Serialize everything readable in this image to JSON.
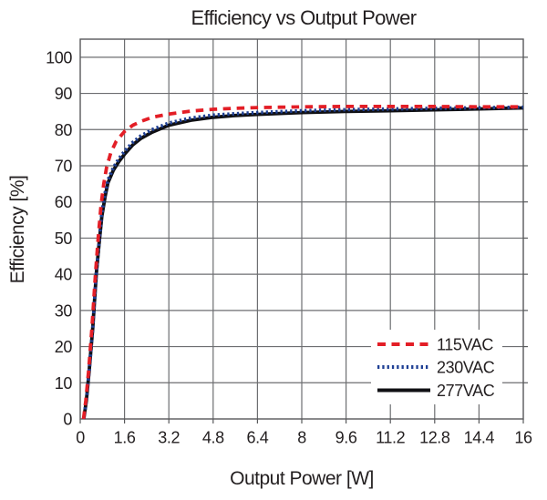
{
  "chart_data": {
    "type": "line",
    "title": "Efficiency vs Output Power",
    "xlabel": "Output Power [W]",
    "ylabel": "Efficiency [%]",
    "xlim": [
      0,
      16
    ],
    "ylim": [
      0,
      105
    ],
    "grid": true,
    "legend_position": "lower right",
    "x_ticks": [
      0,
      1.6,
      3.2,
      4.8,
      6.4,
      8,
      9.6,
      11.2,
      12.8,
      14.4,
      16
    ],
    "x_tick_labels": [
      "0",
      "1.6",
      "3.2",
      "4.8",
      "6.4",
      "8",
      "9.6",
      "11.2",
      "12.8",
      "14.4",
      "16"
    ],
    "y_ticks": [
      0,
      10,
      20,
      30,
      40,
      50,
      60,
      70,
      80,
      90,
      100
    ],
    "y_tick_labels": [
      "0",
      "10",
      "20",
      "30",
      "40",
      "50",
      "60",
      "70",
      "80",
      "90",
      "100"
    ],
    "colors": {
      "grid": "#6d6e71",
      "frame": "#58595b",
      "text": "#231f20"
    },
    "series": [
      {
        "name": "115VAC",
        "style": "dashed",
        "color": "#e31e26",
        "points": [
          [
            0.12,
            0
          ],
          [
            0.2,
            5
          ],
          [
            0.3,
            13
          ],
          [
            0.42,
            25
          ],
          [
            0.55,
            40
          ],
          [
            0.65,
            50
          ],
          [
            0.75,
            59
          ],
          [
            0.85,
            65
          ],
          [
            0.95,
            69.5
          ],
          [
            1.1,
            73.5
          ],
          [
            1.3,
            76.8
          ],
          [
            1.6,
            79.5
          ],
          [
            1.9,
            81.2
          ],
          [
            2.2,
            82.3
          ],
          [
            2.6,
            83.4
          ],
          [
            3.2,
            84.3
          ],
          [
            4.0,
            85.1
          ],
          [
            4.8,
            85.6
          ],
          [
            5.6,
            85.9
          ],
          [
            6.4,
            86.1
          ],
          [
            7.2,
            86.2
          ],
          [
            8.0,
            86.3
          ],
          [
            9.6,
            86.4
          ],
          [
            11.2,
            86.4
          ],
          [
            12.8,
            86.4
          ],
          [
            14.4,
            86.3
          ],
          [
            16,
            86.3
          ]
        ]
      },
      {
        "name": "230VAC",
        "style": "dotted",
        "color": "#1e3f94",
        "points": [
          [
            0.13,
            0
          ],
          [
            0.22,
            5
          ],
          [
            0.32,
            13
          ],
          [
            0.45,
            25
          ],
          [
            0.58,
            40
          ],
          [
            0.68,
            49
          ],
          [
            0.78,
            57
          ],
          [
            0.9,
            62.5
          ],
          [
            1.0,
            66
          ],
          [
            1.2,
            69.5
          ],
          [
            1.4,
            72
          ],
          [
            1.6,
            74
          ],
          [
            1.9,
            76.5
          ],
          [
            2.2,
            78.3
          ],
          [
            2.6,
            80
          ],
          [
            3.2,
            81.8
          ],
          [
            4.0,
            83.2
          ],
          [
            4.8,
            84.0
          ],
          [
            5.6,
            84.4
          ],
          [
            6.4,
            84.7
          ],
          [
            8.0,
            85.2
          ],
          [
            9.6,
            85.5
          ],
          [
            11.2,
            85.7
          ],
          [
            12.8,
            85.9
          ],
          [
            14.4,
            86.05
          ],
          [
            16,
            86.2
          ]
        ]
      },
      {
        "name": "277VAC",
        "style": "solid",
        "color": "#101014",
        "points": [
          [
            0.13,
            0
          ],
          [
            0.22,
            5
          ],
          [
            0.32,
            13
          ],
          [
            0.45,
            25
          ],
          [
            0.58,
            40
          ],
          [
            0.68,
            48.5
          ],
          [
            0.78,
            56
          ],
          [
            0.9,
            61.5
          ],
          [
            1.0,
            65.3
          ],
          [
            1.2,
            68.8
          ],
          [
            1.4,
            71.2
          ],
          [
            1.6,
            73.2
          ],
          [
            1.9,
            75.8
          ],
          [
            2.2,
            77.6
          ],
          [
            2.6,
            79.3
          ],
          [
            3.2,
            81.2
          ],
          [
            4.0,
            82.6
          ],
          [
            4.8,
            83.4
          ],
          [
            5.6,
            83.9
          ],
          [
            6.4,
            84.2
          ],
          [
            8.0,
            84.7
          ],
          [
            9.6,
            85.0
          ],
          [
            11.2,
            85.2
          ],
          [
            12.8,
            85.45
          ],
          [
            14.4,
            85.7
          ],
          [
            16,
            86.0
          ]
        ]
      }
    ]
  }
}
